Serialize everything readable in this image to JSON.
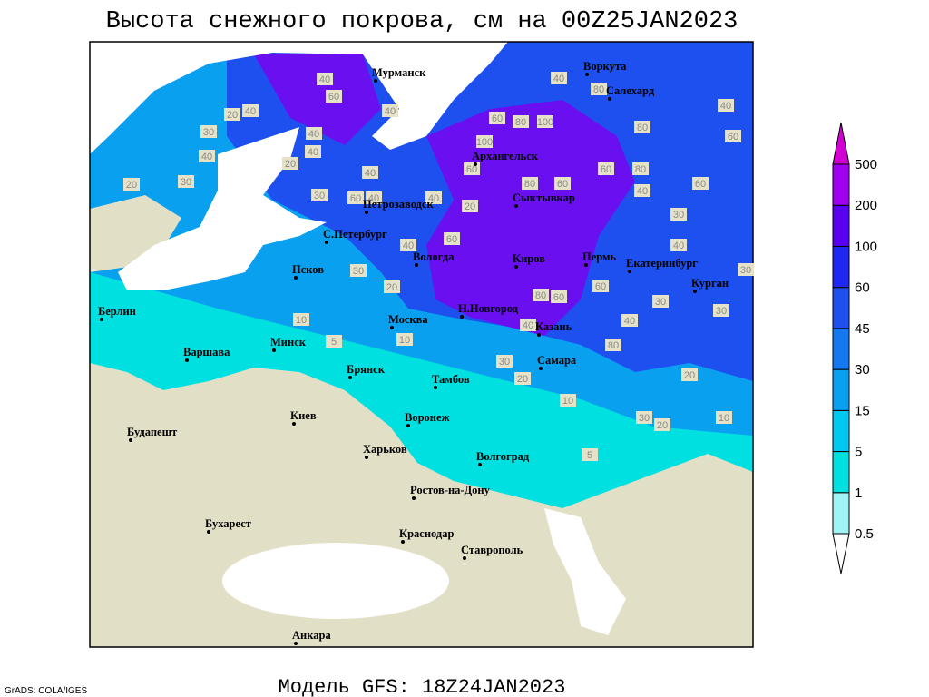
{
  "header": {
    "title": "Высота снежного покрова, см на 00Z25JAN2023"
  },
  "footer": {
    "model": "Модель GFS: 18Z24JAN2023",
    "credit": "GrADS: COLA/IGES"
  },
  "cities": [
    "Мурманск",
    "Воркута",
    "Салехард",
    "Архангельск",
    "Сыктывкар",
    "Петрозаводск",
    "С.Петербург",
    "Вологда",
    "Киров",
    "Пермь",
    "Екатеринбург",
    "Курган",
    "Псков",
    "Н.Новгород",
    "Москва",
    "Казань",
    "Берлин",
    "Минск",
    "Варшава",
    "Брянск",
    "Тамбов",
    "Самара",
    "Киев",
    "Воронеж",
    "Будапешт",
    "Харьков",
    "Волгоград",
    "Ростов-на-Дону",
    "Бухарест",
    "Краснодар",
    "Ставрополь",
    "Анкара"
  ],
  "contour_labels": [
    40,
    60,
    40,
    40,
    20,
    30,
    40,
    20,
    40,
    40,
    30,
    20,
    30,
    60,
    40,
    40,
    40,
    60,
    80,
    100,
    100,
    60,
    80,
    60,
    60,
    80,
    40,
    60,
    60,
    40,
    80,
    40,
    80,
    30,
    40,
    30,
    60,
    30,
    30,
    80,
    20,
    30,
    20,
    10,
    5,
    10,
    30,
    20,
    60,
    80,
    40,
    40,
    60,
    40,
    20,
    10,
    10,
    5,
    30,
    20
  ],
  "colorbar": {
    "levels": [
      0.5,
      1,
      5,
      15,
      30,
      45,
      60,
      100,
      200,
      500
    ],
    "colors": [
      "#ffffff",
      "#9ff5f5",
      "#00e0e0",
      "#00c8f0",
      "#0aa0f0",
      "#1478f0",
      "#1e50f0",
      "#1e28f0",
      "#5a00f0",
      "#a000f0",
      "#d200d2"
    ]
  }
}
